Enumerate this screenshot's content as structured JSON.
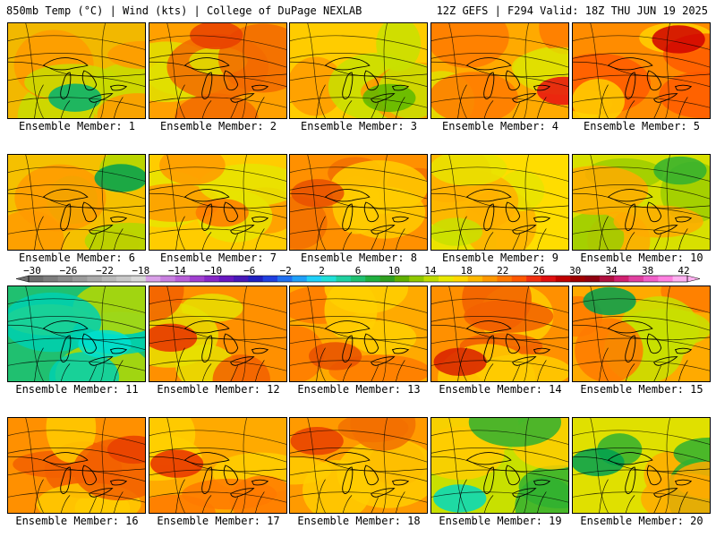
{
  "header": {
    "left": "850mb Temp (°C) | Wind (kts) | College of DuPage NEXLAB",
    "right": "12Z GEFS | F294 Valid: 18Z THU JUN 19 2025"
  },
  "members": [
    {
      "label": "Ensemble Member: 1",
      "palette": [
        "#f2b800",
        "#ff9a00",
        "#c8dc00"
      ],
      "accent": "#00b070"
    },
    {
      "label": "Ensemble Member: 2",
      "palette": [
        "#ffa000",
        "#f26a00",
        "#e0e000"
      ],
      "accent": "#e84000"
    },
    {
      "label": "Ensemble Member: 3",
      "palette": [
        "#ffcc00",
        "#c8e000",
        "#ff9a00"
      ],
      "accent": "#5cb800"
    },
    {
      "label": "Ensemble Member: 4",
      "palette": [
        "#ffaa00",
        "#ff7a00",
        "#e0e000"
      ],
      "accent": "#e81010"
    },
    {
      "label": "Ensemble Member: 5",
      "palette": [
        "#ff8c00",
        "#ff5a00",
        "#ffd000"
      ],
      "accent": "#d00000"
    },
    {
      "label": "Ensemble Member: 6",
      "palette": [
        "#f5c000",
        "#ff9a00",
        "#b0d800"
      ],
      "accent": "#00a050"
    },
    {
      "label": "Ensemble Member: 7",
      "palette": [
        "#ffcc00",
        "#ff9a00",
        "#e8e400"
      ],
      "accent": "#ff7a00"
    },
    {
      "label": "Ensemble Member: 8",
      "palette": [
        "#ff9000",
        "#f27000",
        "#ffcc00"
      ],
      "accent": "#e85000"
    },
    {
      "label": "Ensemble Member: 9",
      "palette": [
        "#ffdd00",
        "#e8e400",
        "#ffb000"
      ],
      "accent": "#c8e000"
    },
    {
      "label": "Ensemble Member: 10",
      "palette": [
        "#d8e000",
        "#ffaa00",
        "#9ccc00"
      ],
      "accent": "#30b030"
    },
    {
      "label": "Ensemble Member: 11",
      "palette": [
        "#20c070",
        "#00d0b0",
        "#b8d800"
      ],
      "accent": "#00e0d0"
    },
    {
      "label": "Ensemble Member: 12",
      "palette": [
        "#ff9000",
        "#f26000",
        "#e8e000"
      ],
      "accent": "#e83000"
    },
    {
      "label": "Ensemble Member: 13",
      "palette": [
        "#ffaa00",
        "#ff7a00",
        "#ffd000"
      ],
      "accent": "#e85000"
    },
    {
      "label": "Ensemble Member: 14",
      "palette": [
        "#ff9000",
        "#f26000",
        "#ffcc00"
      ],
      "accent": "#d82000"
    },
    {
      "label": "Ensemble Member: 15",
      "palette": [
        "#ffaa00",
        "#ff7a00",
        "#c8e000"
      ],
      "accent": "#00a050"
    },
    {
      "label": "Ensemble Member: 16",
      "palette": [
        "#ff9000",
        "#f26000",
        "#ffcc00"
      ],
      "accent": "#e84000"
    },
    {
      "label": "Ensemble Member: 17",
      "palette": [
        "#ffaa00",
        "#ff7a00",
        "#ffd000"
      ],
      "accent": "#e83000"
    },
    {
      "label": "Ensemble Member: 18",
      "palette": [
        "#ff9a00",
        "#f27000",
        "#ffcc00"
      ],
      "accent": "#e84000"
    },
    {
      "label": "Ensemble Member: 19",
      "palette": [
        "#c8e000",
        "#30b030",
        "#ffcc00"
      ],
      "accent": "#00d8c0"
    },
    {
      "label": "Ensemble Member: 20",
      "palette": [
        "#e0e000",
        "#30b030",
        "#ffaa00"
      ],
      "accent": "#00a050"
    }
  ],
  "colorbar": {
    "labels": [
      "−30",
      "−26",
      "−22",
      "−18",
      "−14",
      "−10",
      "−6",
      "−2",
      "2",
      "6",
      "10",
      "14",
      "18",
      "22",
      "26",
      "30",
      "34",
      "38",
      "42"
    ],
    "colors": [
      "#6e6e6e",
      "#7d7d7d",
      "#8c8c8c",
      "#9b9b9b",
      "#aaaaaa",
      "#b9b9b9",
      "#c8c8c8",
      "#d8d8d8",
      "#d9a0e8",
      "#c880e0",
      "#b860d8",
      "#a040d0",
      "#8828c8",
      "#6818c0",
      "#4818b8",
      "#2020c0",
      "#2040e0",
      "#2070f0",
      "#20a0f8",
      "#20d0f8",
      "#20e0d8",
      "#20d0a0",
      "#20c070",
      "#20b040",
      "#30a020",
      "#60b000",
      "#90c800",
      "#c0dc00",
      "#e8e800",
      "#ffd800",
      "#ffb800",
      "#ff9800",
      "#ff7800",
      "#ff5800",
      "#f03010",
      "#e01010",
      "#c00000",
      "#a00000",
      "#900010",
      "#b01040",
      "#d02070",
      "#e040a0",
      "#f060c8",
      "#ff80e0",
      "#ffb0f0"
    ]
  }
}
